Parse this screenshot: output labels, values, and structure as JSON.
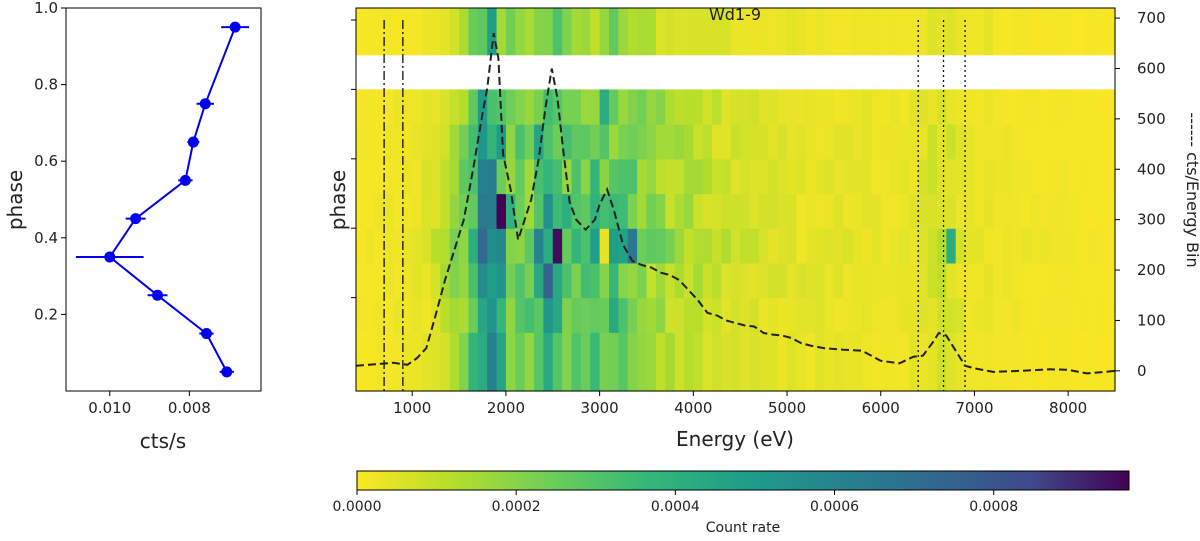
{
  "chart_data": [
    {
      "id": "phase-profile",
      "type": "scatter",
      "xlabel": "cts/s",
      "ylabel": "phase",
      "x_inverted": true,
      "xlim": [
        0.0111,
        0.0062
      ],
      "ylim": [
        0.0,
        1.0
      ],
      "xticks": [
        0.01,
        0.008
      ],
      "xtick_labels": [
        "0.010",
        "0.008"
      ],
      "yticks": [
        0.2,
        0.4,
        0.6,
        0.8,
        1.0
      ],
      "ytick_labels": [
        "0.2",
        "0.4",
        "0.6",
        "0.8",
        "1.0"
      ],
      "color": "#0000ee",
      "points": [
        {
          "phase": 0.05,
          "rate": 0.00706,
          "err": 0.00018
        },
        {
          "phase": 0.15,
          "rate": 0.00757,
          "err": 0.00018
        },
        {
          "phase": 0.25,
          "rate": 0.0088,
          "err": 0.00025
        },
        {
          "phase": 0.35,
          "rate": 0.01,
          "err": 0.00085
        },
        {
          "phase": 0.45,
          "rate": 0.00935,
          "err": 0.00025
        },
        {
          "phase": 0.55,
          "rate": 0.0081,
          "err": 0.00018
        },
        {
          "phase": 0.65,
          "rate": 0.0079,
          "err": 0.00015
        },
        {
          "phase": 0.75,
          "rate": 0.0076,
          "err": 0.00022
        },
        {
          "phase": 0.95,
          "rate": 0.00685,
          "err": 0.00035
        }
      ]
    },
    {
      "id": "phase-energy-map",
      "type": "heatmap",
      "title": "Wd1-9",
      "xlabel": "Energy (eV)",
      "ylabel": "phase",
      "y2label": "------ cts/Energy Bin",
      "xlim": [
        400,
        8500
      ],
      "xticks": [
        1000,
        2000,
        3000,
        4000,
        5000,
        6000,
        7000,
        8000
      ],
      "xtick_labels": [
        "1000",
        "2000",
        "3000",
        "4000",
        "5000",
        "6000",
        "7000",
        "8000"
      ],
      "y2lim": [
        -40,
        720
      ],
      "y2ticks": [
        0,
        100,
        200,
        300,
        400,
        500,
        600,
        700
      ],
      "y2tick_labels": [
        "0",
        "100",
        "200",
        "300",
        "400",
        "500",
        "600",
        "700"
      ],
      "phase_rows": 10,
      "missing_rows": [
        8
      ],
      "bin_width_ev": 100,
      "intensity_profile": [
        [
          400,
          1e-05
        ],
        [
          700,
          2e-05
        ],
        [
          1100,
          3e-05
        ],
        [
          1300,
          8e-05
        ],
        [
          1500,
          0.00018
        ],
        [
          1700,
          0.00035
        ],
        [
          1850,
          0.00058
        ],
        [
          1950,
          0.0004
        ],
        [
          2100,
          0.00024
        ],
        [
          2300,
          0.00026
        ],
        [
          2480,
          0.0006
        ],
        [
          2600,
          0.0003
        ],
        [
          2800,
          0.00024
        ],
        [
          3100,
          0.00034
        ],
        [
          3400,
          0.0002
        ],
        [
          3800,
          0.00013
        ],
        [
          4300,
          8e-05
        ],
        [
          5000,
          5e-05
        ],
        [
          6000,
          3e-05
        ],
        [
          6300,
          3e-05
        ],
        [
          6500,
          6e-05
        ],
        [
          6700,
          8e-05
        ],
        [
          6900,
          3e-05
        ],
        [
          7500,
          2e-05
        ],
        [
          8500,
          1e-05
        ]
      ],
      "row_scale": [
        0.85,
        0.95,
        1.0,
        1.2,
        1.05,
        1.0,
        0.95,
        0.9,
        0,
        0.6
      ],
      "hotspots": [
        {
          "energy": 1900,
          "row": 4,
          "value": 0.00097
        },
        {
          "energy": 2500,
          "row": 3,
          "value": 0.00095
        },
        {
          "energy": 3300,
          "row": 3,
          "value": 0.00065
        },
        {
          "energy": 6700,
          "row": 3,
          "value": 0.00042
        },
        {
          "energy": 3000,
          "row": 3,
          "value": 4e-05
        },
        {
          "energy": 5100,
          "row": 3,
          "value": 2e-05
        },
        {
          "energy": 5100,
          "row": 4,
          "value": 2e-05
        },
        {
          "energy": 4400,
          "row": 9,
          "value": 3e-05
        },
        {
          "energy": 7100,
          "row": 9,
          "value": 4e-05
        }
      ],
      "spectrum": {
        "style": "dashed",
        "color": "#222222",
        "x": [
          400,
          600,
          800,
          950,
          1050,
          1150,
          1250,
          1350,
          1450,
          1550,
          1650,
          1750,
          1800,
          1870,
          1920,
          1970,
          2050,
          2130,
          2200,
          2270,
          2350,
          2420,
          2490,
          2550,
          2610,
          2680,
          2750,
          2850,
          2950,
          3000,
          3080,
          3150,
          3250,
          3350,
          3450,
          3550,
          3650,
          3750,
          3850,
          3950,
          4050,
          4150,
          4250,
          4350,
          4450,
          4550,
          4650,
          4750,
          4850,
          4950,
          5050,
          5150,
          5250,
          5400,
          5600,
          5800,
          6000,
          6200,
          6350,
          6450,
          6550,
          6620,
          6700,
          6800,
          6900,
          7000,
          7200,
          7500,
          7800,
          8000,
          8200,
          8400,
          8500
        ],
        "y": [
          10,
          13,
          16,
          12,
          25,
          45,
          110,
          180,
          240,
          300,
          400,
          510,
          560,
          670,
          620,
          430,
          360,
          260,
          300,
          340,
          420,
          520,
          600,
          540,
          440,
          335,
          300,
          280,
          300,
          330,
          360,
          320,
          250,
          218,
          210,
          205,
          195,
          190,
          180,
          160,
          140,
          115,
          110,
          100,
          95,
          90,
          88,
          75,
          72,
          70,
          65,
          55,
          50,
          45,
          42,
          40,
          20,
          15,
          28,
          30,
          55,
          75,
          70,
          40,
          10,
          5,
          -2,
          0,
          3,
          2,
          -5,
          -2,
          0
        ]
      },
      "vlines": [
        {
          "energy": 700,
          "style": "dashdot"
        },
        {
          "energy": 900,
          "style": "dashdot"
        },
        {
          "energy": 6400,
          "style": "dotted"
        },
        {
          "energy": 6670,
          "style": "dotted"
        },
        {
          "energy": 6900,
          "style": "dotted"
        }
      ]
    },
    {
      "id": "colorbar",
      "type": "colorbar",
      "label": "Count rate",
      "range": [
        0.0,
        0.00097
      ],
      "ticks": [
        0.0,
        0.0002,
        0.0004,
        0.0006,
        0.0008
      ],
      "tick_labels": [
        "0.0000",
        "0.0002",
        "0.0004",
        "0.0006",
        "0.0008"
      ],
      "colormap": "viridis_r"
    }
  ]
}
